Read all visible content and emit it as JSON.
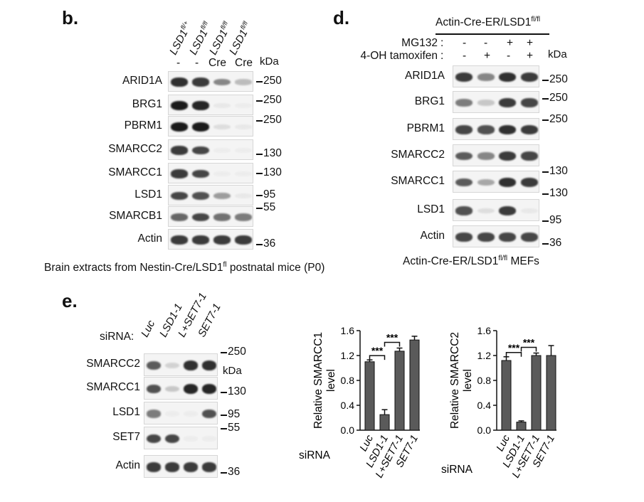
{
  "panels": {
    "b": {
      "letter": "b.",
      "lanes": [
        "LSD1fl/+",
        "LSD1fl/fl",
        "LSD1fl/fl",
        "LSD1fl/fl"
      ],
      "lane_base": "LSD1",
      "lane_sups": [
        "fl/+",
        "fl/fl",
        "fl/fl",
        "fl/fl"
      ],
      "cre": [
        "-",
        "-",
        "Cre",
        "Cre"
      ],
      "kda_label": "kDa",
      "rows": [
        {
          "label": "ARID1A",
          "marker": "250",
          "bands": [
            0.9,
            0.85,
            0.5,
            0.25
          ]
        },
        {
          "label": "BRG1",
          "marker": "250",
          "bands": [
            1.0,
            0.95,
            0.05,
            0.03
          ]
        },
        {
          "label": "PBRM1",
          "marker": "250",
          "bands": [
            1.0,
            1.0,
            0.1,
            0.05
          ]
        },
        {
          "label": "SMARCC2",
          "marker": "130",
          "bands": [
            0.85,
            0.8,
            0.03,
            0.03
          ]
        },
        {
          "label": "SMARCC1",
          "marker": "130",
          "bands": [
            0.85,
            0.8,
            0.03,
            0.03
          ]
        },
        {
          "label": "LSD1",
          "marker": "95",
          "bands": [
            0.8,
            0.75,
            0.4,
            0.05
          ]
        },
        {
          "label": "SMARCB1",
          "marker": "55",
          "bands": [
            0.65,
            0.8,
            0.6,
            0.55
          ]
        },
        {
          "label": "Actin",
          "marker": "36",
          "bands": [
            0.85,
            0.85,
            0.85,
            0.85
          ]
        }
      ],
      "caption_pre": "Brain extracts from Nestin-Cre/LSD1",
      "caption_sup": "fl",
      "caption_post": " postnatal mice (P0)"
    },
    "d": {
      "letter": "d.",
      "header_base": "Actin-Cre-ER/LSD1",
      "header_sup": "fl/fl",
      "conditions": [
        {
          "label": "MG132",
          "colon": ":",
          "values": [
            "-",
            "-",
            "+",
            "+"
          ]
        },
        {
          "label": "4-OH tamoxifen",
          "colon": ":",
          "values": [
            "-",
            "+",
            "-",
            "+"
          ]
        }
      ],
      "kda_label": "kDa",
      "rows": [
        {
          "label": "ARID1A",
          "marker": "250",
          "bands": [
            0.85,
            0.5,
            0.9,
            0.85
          ]
        },
        {
          "label": "BRG1",
          "marker": "250",
          "bands": [
            0.55,
            0.2,
            0.85,
            0.8
          ]
        },
        {
          "label": "PBRM1",
          "marker": "250",
          "bands": [
            0.8,
            0.75,
            0.9,
            0.85
          ]
        },
        {
          "label": "SMARCC2",
          "marker": "130",
          "bands": [
            0.7,
            0.5,
            0.85,
            0.8
          ]
        },
        {
          "label": "SMARCC1",
          "marker": "130",
          "bands": [
            0.7,
            0.35,
            0.9,
            0.85
          ]
        },
        {
          "label": "LSD1",
          "marker": "95",
          "bands": [
            0.75,
            0.1,
            0.85,
            0.05
          ]
        },
        {
          "label": "Actin",
          "marker": "36",
          "bands": [
            0.8,
            0.8,
            0.8,
            0.8
          ]
        }
      ],
      "caption_base": "Actin-Cre-ER/LSD1",
      "caption_sup": "fl/fl",
      "caption_post": " MEFs"
    },
    "e": {
      "letter": "e.",
      "sirna_label": "siRNA:",
      "lanes": [
        "Luc",
        "LSD1-1",
        "L+SET7-1",
        "SET7-1"
      ],
      "kda_label": "kDa",
      "rows": [
        {
          "label": "SMARCC2",
          "marker": "250",
          "bands": [
            0.7,
            0.15,
            0.9,
            0.9
          ]
        },
        {
          "label": "SMARCC1",
          "marker": "130",
          "bands": [
            0.75,
            0.2,
            0.95,
            0.95
          ]
        },
        {
          "label": "LSD1",
          "marker": "95",
          "bands": [
            0.55,
            0.03,
            0.03,
            0.75
          ]
        },
        {
          "label": "SET7",
          "marker": "55",
          "bands": [
            0.8,
            0.8,
            0.03,
            0.03
          ]
        },
        {
          "label": "Actin",
          "marker": "36",
          "bands": [
            0.85,
            0.85,
            0.85,
            0.85
          ]
        }
      ]
    }
  },
  "chart_data": [
    {
      "type": "bar",
      "categories": [
        "Luc",
        "LSD1-1",
        "L+SET7-1",
        "SET7-1"
      ],
      "values": [
        1.1,
        0.25,
        1.27,
        1.45
      ],
      "errors": [
        0.03,
        0.08,
        0.05,
        0.06
      ],
      "ylabel": "Relative SMARCC1 level",
      "ylabel_lines": [
        "Relative SMARCC1",
        "level"
      ],
      "xlabel": "siRNA",
      "ylim": [
        0,
        1.6
      ],
      "yticks": [
        "0.0",
        "0.4",
        "0.8",
        "1.2",
        "1.6"
      ],
      "significance": [
        {
          "from": 0,
          "to": 1,
          "label": "***"
        },
        {
          "from": 1,
          "to": 2,
          "label": "***"
        }
      ],
      "bar_color": "#5a5a5a"
    },
    {
      "type": "bar",
      "categories": [
        "Luc",
        "LSD1-1",
        "L+SET7-1",
        "SET7-1"
      ],
      "values": [
        1.12,
        0.13,
        1.2,
        1.2
      ],
      "errors": [
        0.06,
        0.02,
        0.04,
        0.16
      ],
      "ylabel": "Relative SMARCC2 level",
      "ylabel_lines": [
        "Relative SMARCC2",
        "level"
      ],
      "xlabel": "siRNA",
      "ylim": [
        0,
        1.6
      ],
      "yticks": [
        "0.0",
        "0.4",
        "0.8",
        "1.2",
        "1.6"
      ],
      "significance": [
        {
          "from": 0,
          "to": 1,
          "label": "***"
        },
        {
          "from": 1,
          "to": 2,
          "label": "***"
        }
      ],
      "bar_color": "#5a5a5a"
    }
  ]
}
